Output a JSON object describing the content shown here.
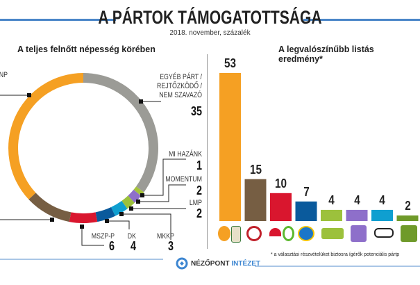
{
  "header": {
    "title": "A PÁRTOK TÁMOGATOTTSÁGA",
    "subtitle": "2018. november, százalék",
    "accent": "#4a86c8"
  },
  "left_heading": "A teljes felnőtt népesség körében",
  "right_heading": "A legvalószínűbb listás eredmény*",
  "footnote": "* a választási részvételüket biztosra ígérők potenciális pártp",
  "brand": {
    "name": "NÉZŐPONT",
    "name2": "INTÉZET",
    "icon": "nezopont-logo-icon"
  },
  "chart_data": [
    {
      "type": "pie",
      "subtype": "donut",
      "title": "A teljes felnőtt népesség körében",
      "slices": [
        {
          "label": "EGYÉB PÁRT / REJTŐZKÖDŐ / NEM SZAVAZÓ",
          "value": 35,
          "color": "#9b9b96"
        },
        {
          "label": "MI HAZÁNK",
          "value": 1,
          "color": "#a5c33b"
        },
        {
          "label": "MOMENTUM",
          "value": 2,
          "color": "#8e6fca"
        },
        {
          "label": "LMP",
          "value": 2,
          "color": "#9cc13c"
        },
        {
          "label": "MKKP",
          "value": 3,
          "color": "#0f9fd0"
        },
        {
          "label": "DK",
          "value": 4,
          "color": "#0a5a9c"
        },
        {
          "label": "MSZP-P",
          "value": 6,
          "color": "#d9162e"
        },
        {
          "label": "",
          "value": 10,
          "color": "#765e43"
        },
        {
          "label": "NP",
          "value": 37,
          "color": "#f5a023"
        }
      ]
    },
    {
      "type": "bar",
      "title": "A legvalószínűbb listás eredmény*",
      "ylim": [
        0,
        55
      ],
      "categories": [
        "FIDESZ-KDNP",
        "JOBBIK",
        "MSZP-P",
        "DK",
        "LMP",
        "MOMENTUM",
        "MKKP",
        "MI HAZÁNK"
      ],
      "values": [
        53,
        15,
        10,
        7,
        4,
        4,
        4,
        2
      ],
      "colors": [
        "#f5a023",
        "#765e43",
        "#d9162e",
        "#0a5a9c",
        "#9cc13c",
        "#8e6fca",
        "#0f9fd0",
        "#6f9a2a"
      ]
    }
  ]
}
